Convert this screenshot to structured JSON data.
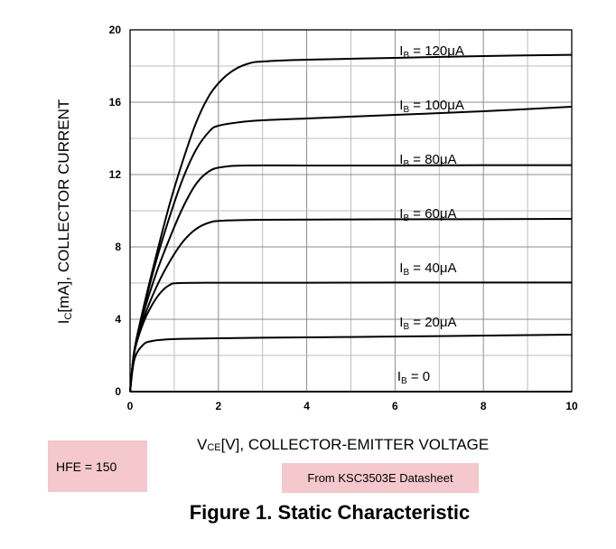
{
  "chart_data": {
    "type": "line",
    "title": "Figure 1. Static Characteristic",
    "xlabel": {
      "main": "V",
      "sub": "CE",
      "rest": "[V], COLLECTOR-EMITTER VOLTAGE"
    },
    "ylabel": {
      "main": "I",
      "sub": "C",
      "rest": "[mA], COLLECTOR CURRENT"
    },
    "xlim": [
      0,
      10
    ],
    "ylim": [
      0,
      20
    ],
    "xticks": [
      0,
      2,
      4,
      6,
      8,
      10
    ],
    "yticks": [
      0,
      4,
      8,
      12,
      16,
      20
    ],
    "grid": true,
    "series": [
      {
        "name": "IB = 0",
        "label": {
          "main": "I",
          "sub": "B",
          "rest": " = 0"
        },
        "label_at": [
          6.05,
          0.6
        ],
        "x": [
          0,
          10
        ],
        "y": [
          0,
          0
        ]
      },
      {
        "name": "IB = 20μA",
        "label": {
          "main": "I",
          "sub": "B",
          "rest": " = 20μA"
        },
        "label_at": [
          6.1,
          3.6
        ],
        "x": [
          0,
          0.1,
          0.3,
          0.5,
          0.8,
          1.2,
          2,
          3,
          5,
          7,
          10
        ],
        "y": [
          0,
          1.8,
          2.6,
          2.8,
          2.88,
          2.92,
          2.95,
          2.98,
          3.02,
          3.07,
          3.15
        ]
      },
      {
        "name": "IB = 40μA",
        "label": {
          "main": "I",
          "sub": "B",
          "rest": " = 40μA"
        },
        "label_at": [
          6.1,
          6.6
        ],
        "x": [
          0,
          0.1,
          0.3,
          0.5,
          0.7,
          0.9,
          1.1,
          2,
          4,
          6,
          8,
          10
        ],
        "y": [
          0,
          2.2,
          3.8,
          4.8,
          5.5,
          5.9,
          6.0,
          6.02,
          6.02,
          6.03,
          6.03,
          6.03
        ]
      },
      {
        "name": "IB = 60μA",
        "label": {
          "main": "I",
          "sub": "B",
          "rest": " = 60μA"
        },
        "label_at": [
          6.1,
          9.6
        ],
        "x": [
          0,
          0.1,
          0.3,
          0.6,
          0.9,
          1.2,
          1.5,
          1.8,
          2.1,
          3,
          5,
          7,
          10
        ],
        "y": [
          0,
          2.3,
          4.0,
          5.8,
          7.2,
          8.3,
          9.0,
          9.35,
          9.45,
          9.5,
          9.52,
          9.53,
          9.55
        ]
      },
      {
        "name": "IB = 80μA",
        "label": {
          "main": "I",
          "sub": "B",
          "rest": " = 80μA"
        },
        "label_at": [
          6.1,
          12.6
        ],
        "x": [
          0,
          0.1,
          0.3,
          0.6,
          0.9,
          1.2,
          1.5,
          1.8,
          2.1,
          2.6,
          4,
          6,
          8,
          10
        ],
        "y": [
          0,
          2.3,
          4.3,
          6.6,
          8.5,
          10.2,
          11.5,
          12.2,
          12.42,
          12.5,
          12.5,
          12.5,
          12.52,
          12.52
        ]
      },
      {
        "name": "IB = 100μA",
        "label": {
          "main": "I",
          "sub": "B",
          "rest": " = 100μA"
        },
        "label_at": [
          6.1,
          15.6
        ],
        "x": [
          0,
          0.1,
          0.3,
          0.6,
          0.9,
          1.2,
          1.5,
          1.8,
          2.0,
          2.5,
          3,
          4,
          6,
          8,
          10
        ],
        "y": [
          0,
          2.3,
          4.5,
          7.3,
          9.7,
          11.8,
          13.4,
          14.4,
          14.7,
          14.9,
          15.0,
          15.1,
          15.3,
          15.5,
          15.75
        ]
      },
      {
        "name": "IB = 120μA",
        "label": {
          "main": "I",
          "sub": "B",
          "rest": " = 120μA"
        },
        "label_at": [
          6.1,
          18.6
        ],
        "x": [
          0,
          0.1,
          0.3,
          0.6,
          0.9,
          1.2,
          1.5,
          1.8,
          2.1,
          2.4,
          2.7,
          3,
          4,
          6,
          8,
          10
        ],
        "y": [
          0,
          2.3,
          4.6,
          7.6,
          10.4,
          12.8,
          14.9,
          16.4,
          17.3,
          17.85,
          18.15,
          18.25,
          18.35,
          18.45,
          18.55,
          18.62
        ]
      }
    ]
  },
  "annotations": {
    "hfe": "HFE = 150",
    "source": "From KSC3503E Datasheet"
  }
}
